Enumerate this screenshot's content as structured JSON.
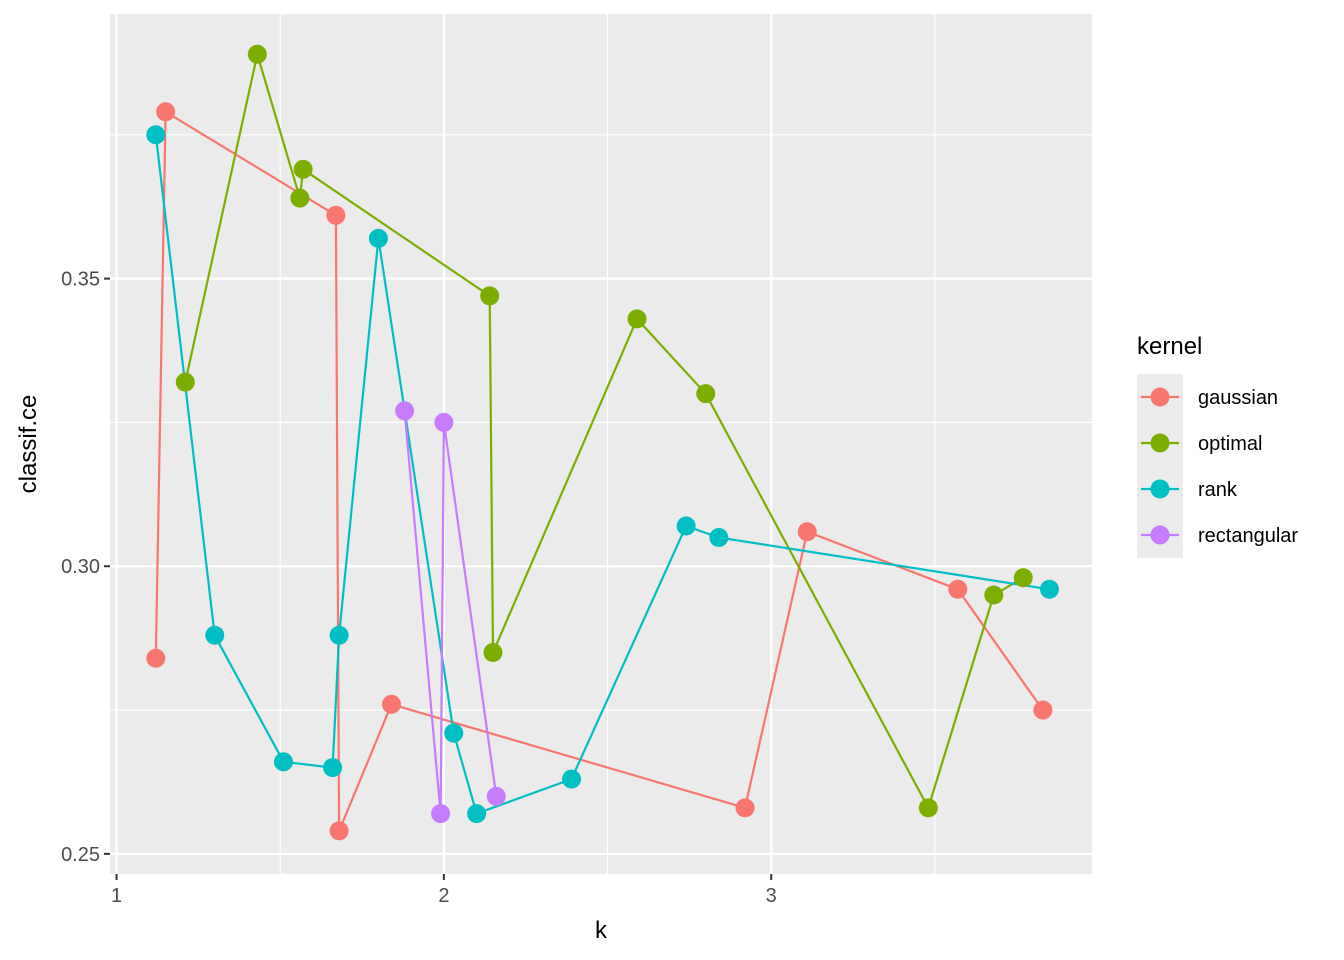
{
  "chart_data": {
    "type": "line",
    "xlabel": "k",
    "ylabel": "classif.ce",
    "xlim": [
      0.98,
      3.98
    ],
    "ylim": [
      0.2465,
      0.396
    ],
    "x_breaks": [
      1,
      2,
      3
    ],
    "x_minor": [
      1.5,
      2.5,
      3.5
    ],
    "y_breaks": [
      0.25,
      0.3,
      0.35
    ],
    "y_minor": [
      0.275,
      0.325,
      0.375
    ],
    "x_tick_labels": [
      "1",
      "2",
      "3"
    ],
    "y_tick_labels": [
      "0.25",
      "0.30",
      "0.35"
    ],
    "grid": true,
    "legend": {
      "title": "kernel",
      "position": "right"
    },
    "series": [
      {
        "name": "gaussian",
        "color": "#F8766D",
        "points": [
          [
            1.12,
            0.284
          ],
          [
            1.15,
            0.379
          ],
          [
            1.67,
            0.361
          ],
          [
            1.68,
            0.254
          ],
          [
            1.84,
            0.276
          ],
          [
            2.92,
            0.258
          ],
          [
            3.11,
            0.306
          ],
          [
            3.57,
            0.296
          ],
          [
            3.83,
            0.275
          ]
        ]
      },
      {
        "name": "optimal",
        "color": "#7CAE00",
        "points": [
          [
            1.21,
            0.332
          ],
          [
            1.43,
            0.389
          ],
          [
            1.56,
            0.364
          ],
          [
            1.57,
            0.369
          ],
          [
            2.14,
            0.347
          ],
          [
            2.15,
            0.285
          ],
          [
            2.59,
            0.343
          ],
          [
            2.8,
            0.33
          ],
          [
            3.48,
            0.258
          ],
          [
            3.68,
            0.295
          ],
          [
            3.77,
            0.298
          ]
        ]
      },
      {
        "name": "rank",
        "color": "#00BFC4",
        "points": [
          [
            1.12,
            0.375
          ],
          [
            1.3,
            0.288
          ],
          [
            1.51,
            0.266
          ],
          [
            1.66,
            0.265
          ],
          [
            1.68,
            0.288
          ],
          [
            1.8,
            0.357
          ],
          [
            2.03,
            0.271
          ],
          [
            2.1,
            0.257
          ],
          [
            2.39,
            0.263
          ],
          [
            2.74,
            0.307
          ],
          [
            2.84,
            0.305
          ],
          [
            3.85,
            0.296
          ]
        ]
      },
      {
        "name": "rectangular",
        "color": "#C77CFF",
        "points": [
          [
            1.88,
            0.327
          ],
          [
            1.99,
            0.257
          ],
          [
            2.0,
            0.325
          ],
          [
            2.16,
            0.26
          ]
        ]
      }
    ]
  }
}
